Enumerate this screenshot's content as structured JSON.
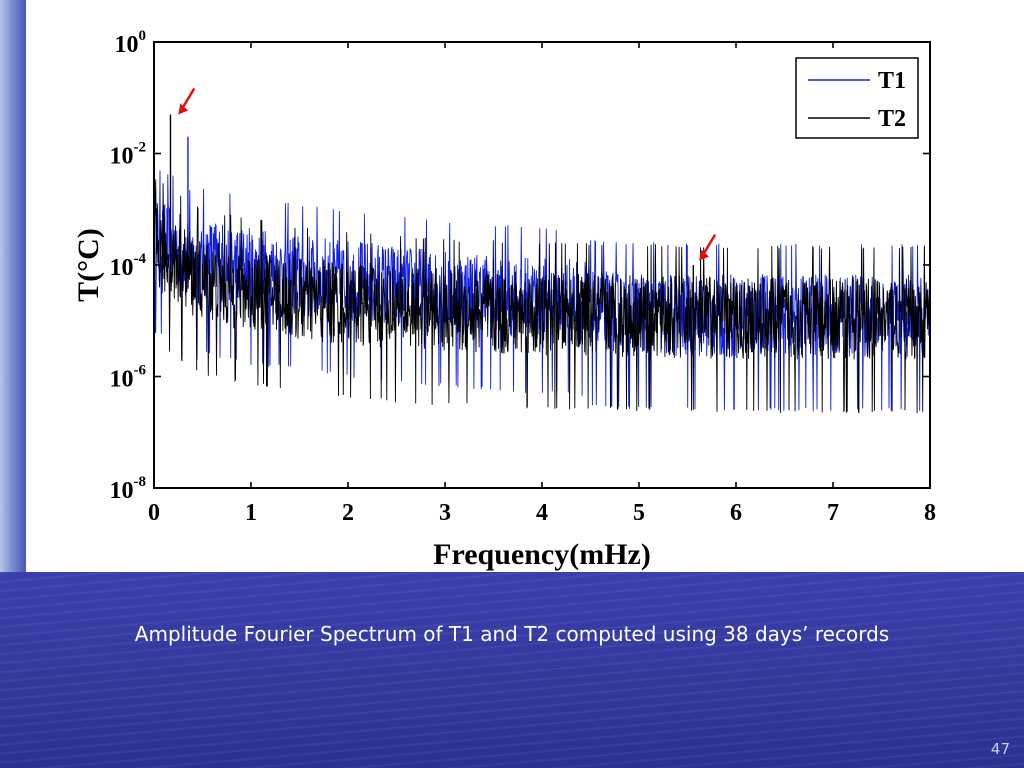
{
  "slide": {
    "caption": "Amplitude Fourier Spectrum of T1 and T2 computed using 38 days’ records",
    "page_number": "47"
  },
  "chart_data": {
    "type": "line",
    "title": "",
    "xlabel": "Frequency(mHz)",
    "ylabel": "T(°C)",
    "xlim": [
      0,
      8
    ],
    "ylim": [
      1e-08,
      1
    ],
    "yscale": "log",
    "x_ticks": [
      "0",
      "1",
      "2",
      "3",
      "4",
      "5",
      "6",
      "7",
      "8"
    ],
    "y_ticks": [
      {
        "base": "10",
        "exp": "0"
      },
      {
        "base": "10",
        "exp": "-2"
      },
      {
        "base": "10",
        "exp": "-4"
      },
      {
        "base": "10",
        "exp": "-6"
      },
      {
        "base": "10",
        "exp": "-8"
      }
    ],
    "legend_position": "top-right",
    "series": [
      {
        "name": "T1",
        "color": "#1020e0",
        "x": [
          0,
          0.2,
          0.5,
          1.0,
          1.5,
          2.0,
          2.5,
          3.0,
          4.0,
          5.0,
          6.0,
          7.0,
          8.0
        ],
        "y": [
          0.0003,
          0.0002,
          8e-05,
          5e-05,
          4e-05,
          3e-05,
          2.5e-05,
          2e-05,
          1.5e-05,
          1.3e-05,
          1.2e-05,
          1.2e-05,
          1.2e-05
        ],
        "peaks": [
          {
            "x": 0.35,
            "y": 0.02
          }
        ]
      },
      {
        "name": "T2",
        "color": "#000000",
        "x": [
          0,
          0.2,
          0.5,
          1.0,
          1.5,
          2.0,
          2.5,
          3.0,
          4.0,
          5.0,
          6.0,
          7.0,
          8.0
        ],
        "y": [
          0.0002,
          0.00012,
          5e-05,
          3.5e-05,
          2.5e-05,
          2e-05,
          1.7e-05,
          1.5e-05,
          1.3e-05,
          1.2e-05,
          1.1e-05,
          1.1e-05,
          1.1e-05
        ],
        "peaks": [
          {
            "x": 0.17,
            "y": 0.05
          },
          {
            "x": 5.56,
            "y": 0.0001
          }
        ]
      }
    ],
    "annotations": [
      {
        "type": "arrow",
        "color": "#e01010",
        "x": 0.25,
        "y": 0.05
      },
      {
        "type": "arrow",
        "color": "#e01010",
        "x": 5.62,
        "y": 0.00012
      }
    ]
  }
}
